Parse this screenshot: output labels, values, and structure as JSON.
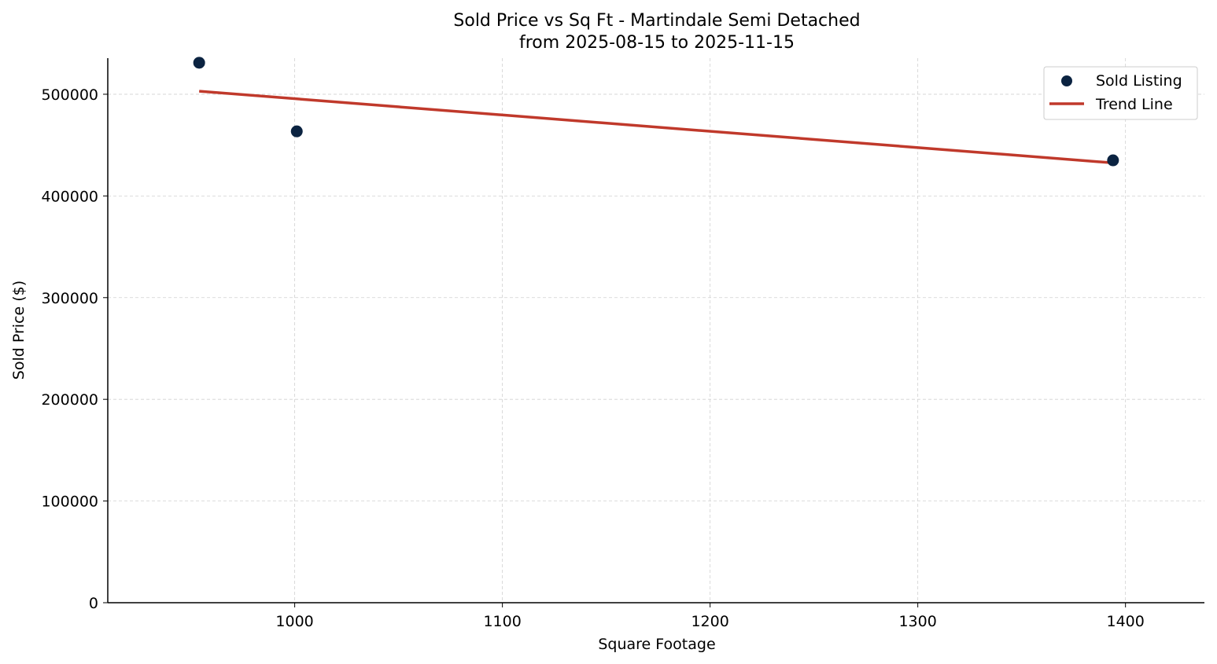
{
  "chart_data": {
    "type": "scatter",
    "title": "Sold Price vs Sq Ft - Martindale Semi Detached",
    "subtitle": "from 2025-08-15 to 2025-11-15",
    "xlabel": "Square Footage",
    "ylabel": "Sold Price ($)",
    "xlim": [
      910,
      1438
    ],
    "ylim": [
      0,
      535500
    ],
    "xticks": [
      1000,
      1100,
      1200,
      1300,
      1400
    ],
    "yticks": [
      0,
      100000,
      200000,
      300000,
      400000,
      500000
    ],
    "grid": true,
    "legend_placement": "top-right",
    "series": [
      {
        "name": "Sold Listing",
        "kind": "scatter",
        "color": "#0b2341",
        "points": [
          {
            "x": 954,
            "y": 531000
          },
          {
            "x": 1001,
            "y": 463500
          },
          {
            "x": 1394,
            "y": 435000
          }
        ]
      },
      {
        "name": "Trend Line",
        "kind": "line",
        "color": "#c0392b",
        "points": [
          {
            "x": 954,
            "y": 503000
          },
          {
            "x": 1394,
            "y": 432500
          }
        ]
      }
    ]
  }
}
